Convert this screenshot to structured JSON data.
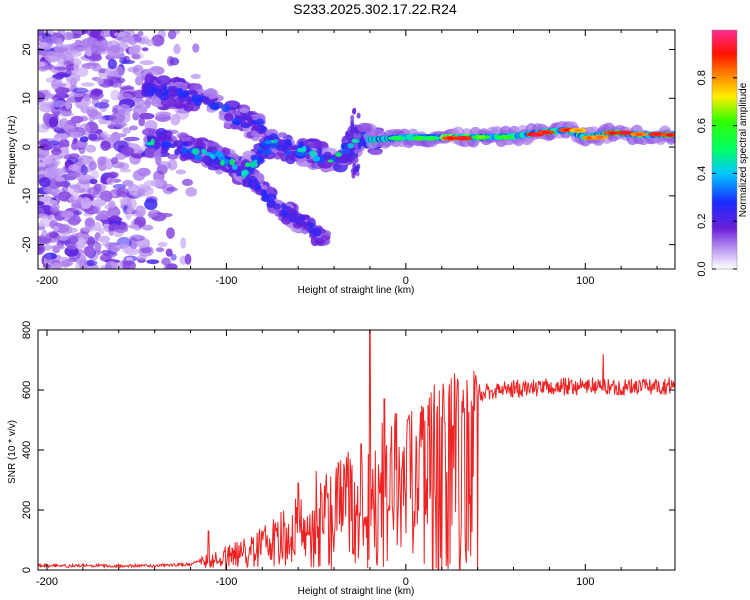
{
  "figure_title": "S233.2025.302.17.22.R24",
  "colors": {
    "snr_line": "#ee2222",
    "axis": "#000000"
  },
  "chart_data": [
    {
      "type": "heatmap",
      "title": "",
      "xlabel": "Height of straight line (km)",
      "ylabel": "Frequency (Hz)",
      "xlim": [
        -205,
        150
      ],
      "ylim": [
        -25,
        24
      ],
      "xticks": [
        -200,
        -100,
        0,
        100
      ],
      "xtick_labels": [
        "-200",
        "-100",
        "0",
        "100"
      ],
      "yticks": [
        -20,
        -10,
        0,
        10,
        20
      ],
      "ytick_labels": [
        "-20",
        "-10",
        "0",
        "10",
        "20"
      ],
      "colorbar": {
        "label": "Normalized spectral amplitude",
        "range": [
          0,
          1
        ],
        "ticks": [
          0.0,
          0.2,
          0.4,
          0.6,
          0.8
        ],
        "tick_labels": [
          "0.0",
          "0.2",
          "0.4",
          "0.6",
          "0.8"
        ],
        "colormap": "rainbow (white-violet-blue-cyan-green-yellow-red-magenta)"
      },
      "features": {
        "scatter_region_x": [
          -205,
          -120
        ],
        "upper_branch": [
          [
            -145,
            12
          ],
          [
            -130,
            11
          ],
          [
            -115,
            10
          ],
          [
            -95,
            6
          ],
          [
            -80,
            4
          ]
        ],
        "middle_branch": [
          [
            -145,
            1
          ],
          [
            -125,
            0
          ],
          [
            -105,
            -2
          ],
          [
            -90,
            -5
          ],
          [
            -75,
            1
          ],
          [
            -55,
            -1
          ],
          [
            -40,
            -3
          ],
          [
            -25,
            2
          ],
          [
            -15,
            1
          ]
        ],
        "lower_branch": [
          [
            -110,
            -1
          ],
          [
            -90,
            -5
          ],
          [
            -75,
            -11
          ],
          [
            -60,
            -15
          ],
          [
            -45,
            -19
          ]
        ],
        "main_ridge": [
          [
            -20,
            1.5
          ],
          [
            0,
            2.0
          ],
          [
            20,
            2.0
          ],
          [
            40,
            2.0
          ],
          [
            60,
            2.2
          ],
          [
            75,
            3.0
          ],
          [
            90,
            3.5
          ],
          [
            100,
            2.0
          ],
          [
            115,
            3.0
          ],
          [
            130,
            2.5
          ],
          [
            150,
            2.5
          ]
        ]
      }
    },
    {
      "type": "line",
      "title": "",
      "xlabel": "Height of straight line (km)",
      "ylabel": "SNR (10 * v/v)",
      "xlim": [
        -205,
        150
      ],
      "ylim": [
        0,
        800
      ],
      "xticks": [
        -200,
        -100,
        0,
        100
      ],
      "xtick_labels": [
        "-200",
        "-100",
        "0",
        "100"
      ],
      "yticks": [
        0,
        200,
        400,
        600,
        800
      ],
      "ytick_labels": [
        "0",
        "200",
        "400",
        "600",
        "800"
      ],
      "series": [
        {
          "name": "SNR",
          "envelope_x": [
            -205,
            -180,
            -160,
            -140,
            -120,
            -110,
            -100,
            -90,
            -80,
            -70,
            -60,
            -50,
            -40,
            -30,
            -25,
            -20,
            -15,
            -10,
            -5,
            0,
            5,
            10,
            20,
            30,
            40,
            60,
            80,
            100,
            120,
            140,
            150
          ],
          "envelope_y": [
            15,
            15,
            15,
            15,
            20,
            40,
            60,
            80,
            110,
            150,
            180,
            220,
            260,
            300,
            320,
            340,
            360,
            370,
            390,
            420,
            470,
            520,
            570,
            590,
            600,
            610,
            615,
            620,
            615,
            620,
            620
          ],
          "spikes": [
            [
              -20,
              800
            ],
            [
              -12,
              570
            ],
            [
              -25,
              420
            ],
            [
              -30,
              350
            ],
            [
              -60,
              290
            ],
            [
              -50,
              330
            ],
            [
              -8,
              480
            ],
            [
              1,
              500
            ],
            [
              15,
              0
            ],
            [
              18,
              0
            ],
            [
              20,
              0
            ],
            [
              30,
              0
            ],
            [
              40,
              0
            ],
            [
              110,
              720
            ],
            [
              -110,
              130
            ]
          ]
        }
      ]
    }
  ]
}
